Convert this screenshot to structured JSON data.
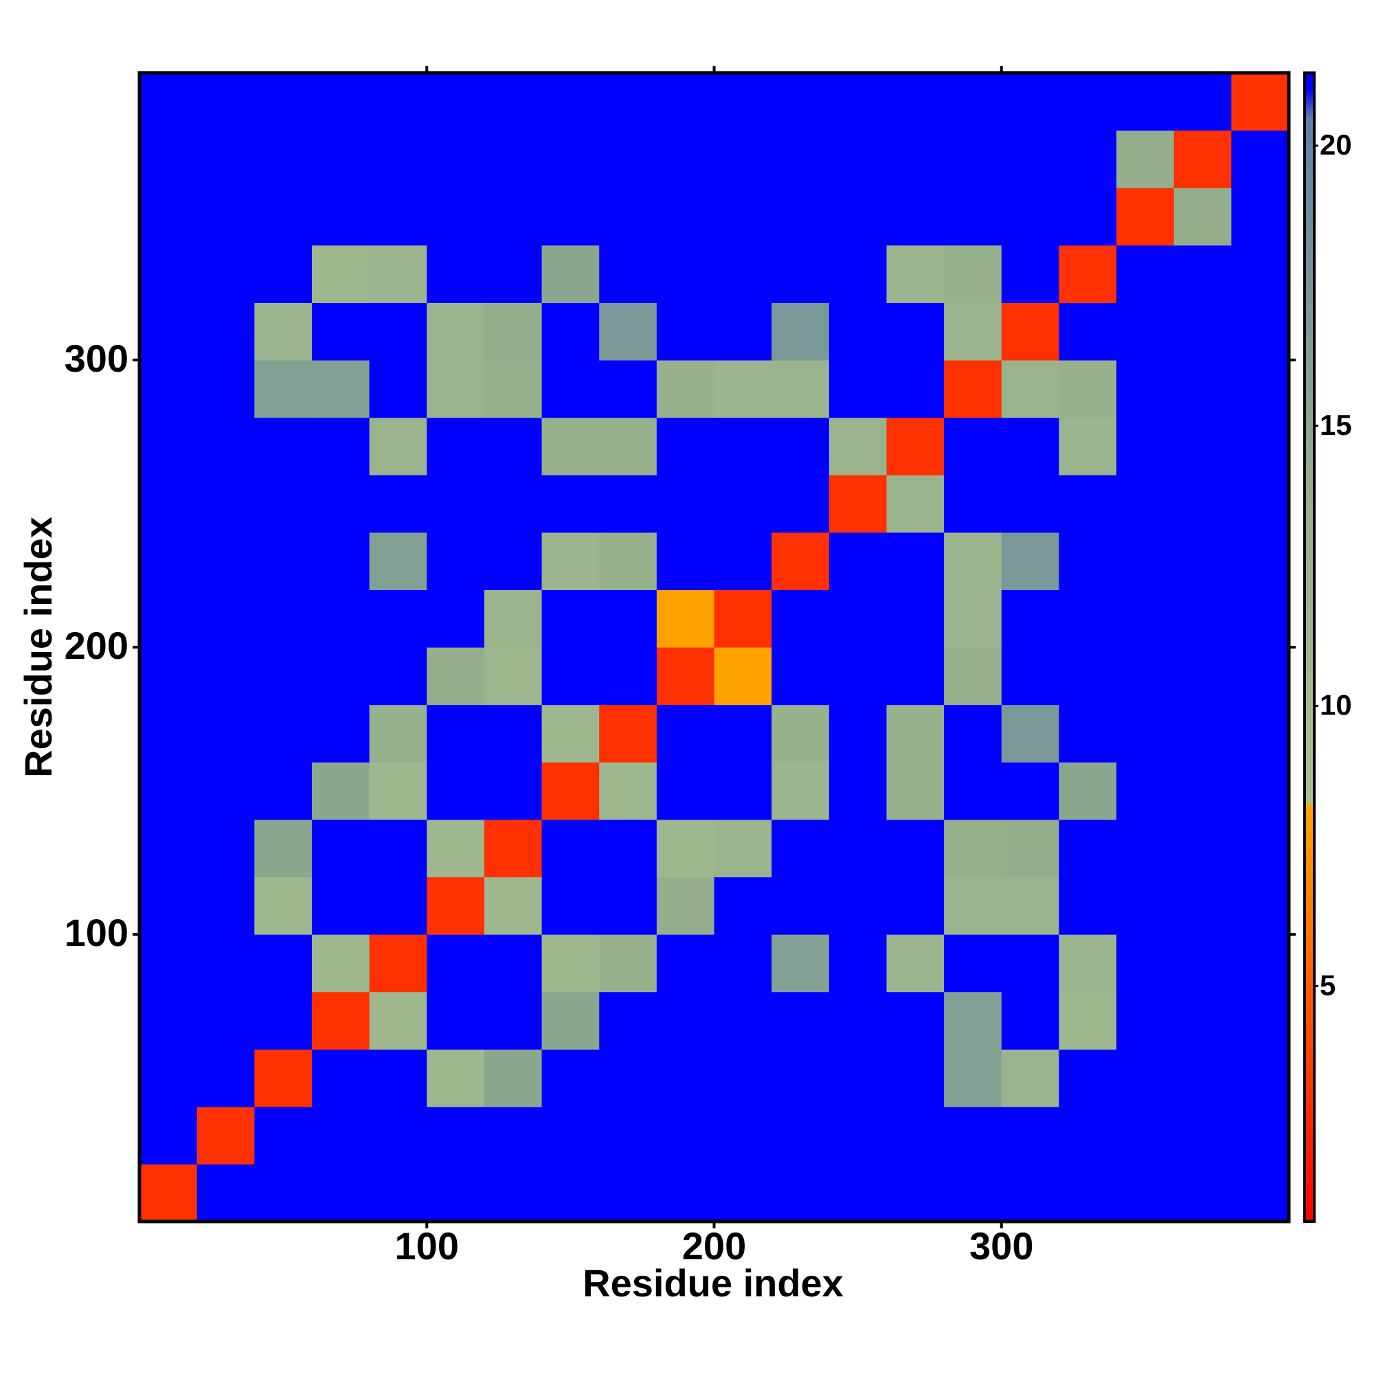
{
  "chart_data": {
    "type": "heatmap",
    "xlabel": "Residue index",
    "ylabel": "Residue index",
    "xlim": [
      0,
      400
    ],
    "ylim": [
      0,
      400
    ],
    "xticks": [
      100,
      200,
      300
    ],
    "yticks": [
      100,
      200,
      300
    ],
    "xbins": [
      0,
      20,
      40,
      60,
      80,
      100,
      120,
      140,
      160,
      180,
      200,
      220,
      240,
      260,
      280,
      300,
      320,
      340,
      360,
      380,
      400
    ],
    "ybins": [
      0,
      20,
      40,
      60,
      80,
      100,
      120,
      140,
      160,
      180,
      200,
      220,
      240,
      260,
      280,
      300,
      320,
      340,
      360,
      380,
      400
    ],
    "z": [
      [
        3,
        21,
        21,
        21,
        21,
        21,
        21,
        21,
        21,
        21,
        21,
        21,
        21,
        21,
        21,
        21,
        21,
        21,
        21,
        21
      ],
      [
        21,
        3,
        21,
        21,
        21,
        21,
        21,
        21,
        21,
        21,
        21,
        21,
        21,
        21,
        21,
        21,
        21,
        21,
        21,
        21
      ],
      [
        21,
        21,
        3,
        21,
        21,
        11,
        15,
        21,
        21,
        21,
        21,
        21,
        21,
        21,
        16,
        12,
        21,
        21,
        21,
        21
      ],
      [
        21,
        21,
        21,
        3,
        11,
        21,
        21,
        15,
        21,
        21,
        21,
        21,
        21,
        21,
        16,
        21,
        11,
        21,
        21,
        21
      ],
      [
        21,
        21,
        21,
        11,
        3,
        21,
        21,
        11,
        13,
        21,
        21,
        16,
        21,
        12,
        21,
        21,
        12,
        21,
        21,
        21
      ],
      [
        21,
        21,
        11,
        21,
        21,
        3,
        11,
        21,
        21,
        14,
        21,
        21,
        21,
        21,
        12,
        12,
        21,
        21,
        21,
        21
      ],
      [
        21,
        21,
        15,
        21,
        21,
        11,
        3,
        21,
        21,
        11,
        12,
        21,
        21,
        21,
        13,
        14,
        21,
        21,
        21,
        21
      ],
      [
        21,
        21,
        21,
        15,
        11,
        21,
        21,
        3,
        11,
        21,
        21,
        12,
        21,
        13,
        21,
        21,
        15,
        21,
        21,
        21
      ],
      [
        21,
        21,
        21,
        21,
        13,
        21,
        21,
        11,
        3,
        21,
        21,
        13,
        21,
        13,
        21,
        17,
        21,
        21,
        21,
        21
      ],
      [
        21,
        21,
        21,
        21,
        21,
        14,
        11,
        21,
        21,
        3,
        8,
        21,
        21,
        21,
        13,
        21,
        21,
        21,
        21,
        21
      ],
      [
        21,
        21,
        21,
        21,
        21,
        21,
        12,
        21,
        21,
        8,
        3,
        21,
        21,
        21,
        12,
        21,
        21,
        21,
        21,
        21
      ],
      [
        21,
        21,
        21,
        21,
        16,
        21,
        21,
        12,
        13,
        21,
        21,
        3,
        21,
        21,
        12,
        17,
        21,
        21,
        21,
        21
      ],
      [
        21,
        21,
        21,
        21,
        21,
        21,
        21,
        21,
        21,
        21,
        21,
        21,
        3,
        12,
        21,
        21,
        21,
        21,
        21,
        21
      ],
      [
        21,
        21,
        21,
        21,
        12,
        21,
        21,
        13,
        13,
        21,
        21,
        21,
        12,
        3,
        21,
        21,
        12,
        21,
        21,
        21
      ],
      [
        21,
        21,
        16,
        16,
        21,
        12,
        13,
        21,
        21,
        13,
        12,
        12,
        21,
        21,
        3,
        12,
        13,
        21,
        21,
        21
      ],
      [
        21,
        21,
        12,
        21,
        21,
        12,
        14,
        21,
        17,
        21,
        21,
        17,
        21,
        21,
        12,
        3,
        21,
        21,
        21,
        21
      ],
      [
        21,
        21,
        21,
        11,
        12,
        21,
        21,
        15,
        21,
        21,
        21,
        21,
        21,
        12,
        13,
        21,
        3,
        21,
        21,
        21
      ],
      [
        21,
        21,
        21,
        21,
        21,
        21,
        21,
        21,
        21,
        21,
        21,
        21,
        21,
        21,
        21,
        21,
        21,
        3,
        14,
        21
      ],
      [
        21,
        21,
        21,
        21,
        21,
        21,
        21,
        21,
        21,
        21,
        21,
        21,
        21,
        21,
        21,
        21,
        21,
        14,
        3,
        21
      ],
      [
        21,
        21,
        21,
        21,
        21,
        21,
        21,
        21,
        21,
        21,
        21,
        21,
        21,
        21,
        21,
        21,
        21,
        21,
        21,
        3
      ]
    ],
    "colorscale": [
      [
        0.8,
        "#ff0000"
      ],
      [
        8.2,
        "#ffa500"
      ],
      [
        8.3,
        "#a8c090"
      ],
      [
        14,
        "#94ae8c"
      ],
      [
        20.5,
        "#5d7fa8"
      ],
      [
        21,
        "#0000ff"
      ],
      [
        21.3,
        "#0000ff"
      ]
    ],
    "clim": [
      0.8,
      21.3
    ],
    "cticks": [
      5,
      10,
      15,
      20
    ]
  }
}
